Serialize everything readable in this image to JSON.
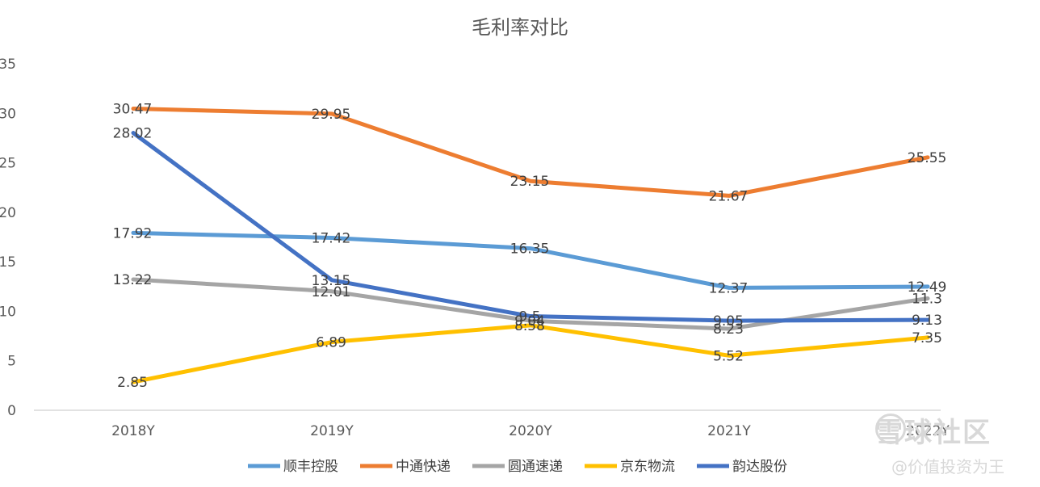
{
  "chart_data": {
    "type": "line",
    "title": "毛利率对比",
    "categories": [
      "2018Y",
      "2019Y",
      "2020Y",
      "2021Y",
      "2022Y"
    ],
    "ylim": [
      0,
      35
    ],
    "yticks": [
      0,
      5,
      10,
      15,
      20,
      25,
      30,
      35
    ],
    "grid": false,
    "legend_position": "bottom",
    "series": [
      {
        "name": "顺丰控股",
        "color": "#5b9bd5",
        "values": [
          17.92,
          17.42,
          16.35,
          12.37,
          12.49
        ]
      },
      {
        "name": "中通快递",
        "color": "#ed7d31",
        "values": [
          30.47,
          29.95,
          23.15,
          21.67,
          25.55
        ]
      },
      {
        "name": "圆通速递",
        "color": "#a5a5a5",
        "values": [
          13.22,
          12.01,
          9.04,
          8.23,
          11.3
        ]
      },
      {
        "name": "京东物流",
        "color": "#ffc000",
        "values": [
          2.85,
          6.89,
          8.58,
          5.52,
          7.35
        ]
      },
      {
        "name": "韵达股份",
        "color": "#4472c4",
        "values": [
          28.02,
          13.15,
          9.5,
          9.05,
          9.13
        ]
      }
    ]
  },
  "watermark": {
    "logo": "雪球社区",
    "author": "@价值投资为王"
  }
}
